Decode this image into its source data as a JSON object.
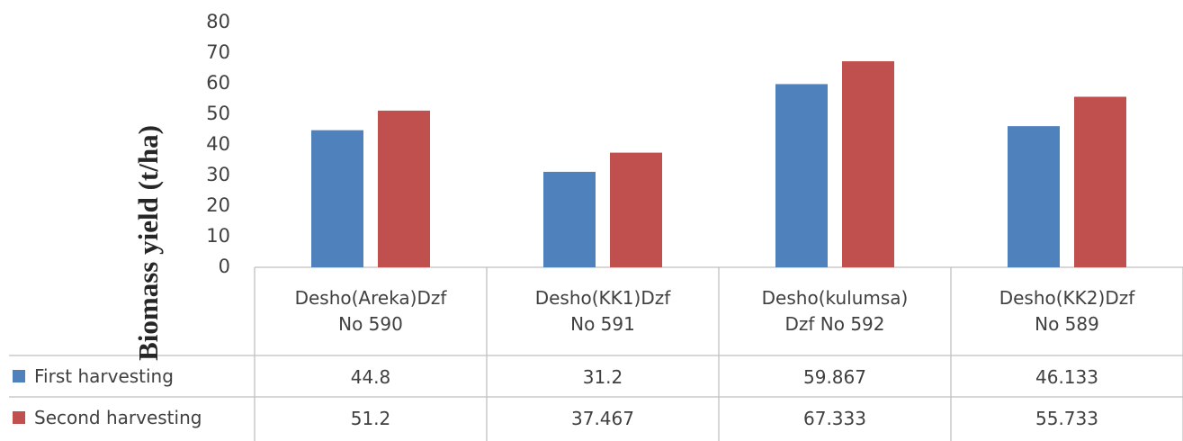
{
  "chart_data": {
    "type": "bar",
    "ylabel": "Biomass yield (t/ha)",
    "categories": [
      "Desho(Areka)Dzf\nNo 590",
      "Desho(KK1)Dzf\nNo 591",
      "Desho(kulumsa)\nDzf No 592",
      "Desho(KK2)Dzf\nNo 589"
    ],
    "series": [
      {
        "name": "First harvesting",
        "color": "#4f81bd",
        "values": [
          44.8,
          31.2,
          59.867,
          46.133
        ]
      },
      {
        "name": "Second harvesting",
        "color": "#c0504d",
        "values": [
          51.2,
          37.467,
          67.333,
          55.733
        ]
      }
    ],
    "ylim": [
      0,
      80
    ],
    "yticks": [
      0,
      10,
      20,
      30,
      40,
      50,
      60,
      70,
      80
    ],
    "grid": false
  }
}
